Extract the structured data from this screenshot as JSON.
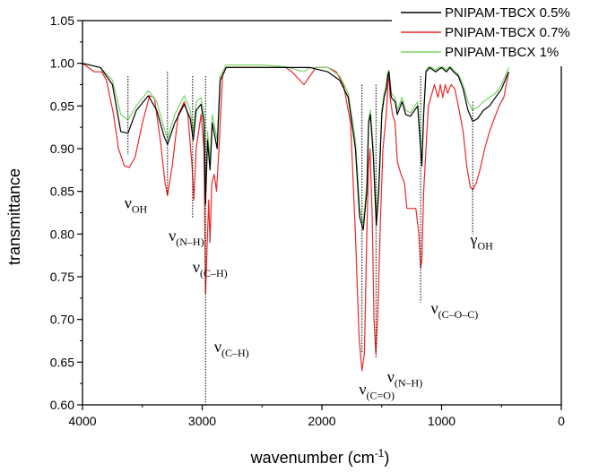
{
  "chart_data": {
    "type": "line",
    "title": "",
    "xlabel": "wavenumber (cm",
    "xlabel_sup": "-1",
    "xlabel_tail": ")",
    "ylabel": "transmittance",
    "xlim": [
      4000,
      0
    ],
    "ylim": [
      0.6,
      1.05
    ],
    "grid": false,
    "legend_position": "top-right",
    "x_ticks": [
      4000,
      3000,
      2000,
      1000,
      0
    ],
    "x_tick_labels": [
      "4000",
      "3000",
      "2000",
      "1000",
      "0"
    ],
    "y_ticks": [
      0.6,
      0.65,
      0.7,
      0.75,
      0.8,
      0.85,
      0.9,
      0.95,
      1.0,
      1.05
    ],
    "y_tick_labels": [
      "0.60",
      "0.65",
      "0.70",
      "0.75",
      "0.80",
      "0.85",
      "0.90",
      "0.95",
      "1.00",
      "1.05"
    ],
    "series": [
      {
        "name": "PNIPAM-TBCX 0.5%",
        "color": "#000000",
        "points": [
          [
            4000,
            1.0
          ],
          [
            3850,
            0.995
          ],
          [
            3750,
            0.975
          ],
          [
            3680,
            0.92
          ],
          [
            3620,
            0.918
          ],
          [
            3550,
            0.945
          ],
          [
            3450,
            0.962
          ],
          [
            3380,
            0.945
          ],
          [
            3320,
            0.915
          ],
          [
            3290,
            0.905
          ],
          [
            3230,
            0.93
          ],
          [
            3150,
            0.952
          ],
          [
            3100,
            0.935
          ],
          [
            3075,
            0.91
          ],
          [
            3050,
            0.945
          ],
          [
            3010,
            0.952
          ],
          [
            2985,
            0.93
          ],
          [
            2972,
            0.835
          ],
          [
            2955,
            0.91
          ],
          [
            2935,
            0.875
          ],
          [
            2915,
            0.93
          ],
          [
            2875,
            0.9
          ],
          [
            2850,
            0.98
          ],
          [
            2800,
            0.995
          ],
          [
            2700,
            0.995
          ],
          [
            2500,
            0.995
          ],
          [
            2300,
            0.995
          ],
          [
            2100,
            0.995
          ],
          [
            1950,
            0.99
          ],
          [
            1850,
            0.98
          ],
          [
            1780,
            0.96
          ],
          [
            1720,
            0.9
          ],
          [
            1685,
            0.82
          ],
          [
            1655,
            0.805
          ],
          [
            1625,
            0.85
          ],
          [
            1610,
            0.93
          ],
          [
            1595,
            0.94
          ],
          [
            1570,
            0.89
          ],
          [
            1545,
            0.81
          ],
          [
            1525,
            0.85
          ],
          [
            1500,
            0.94
          ],
          [
            1480,
            0.96
          ],
          [
            1462,
            0.97
          ],
          [
            1450,
            0.985
          ],
          [
            1440,
            0.99
          ],
          [
            1420,
            0.96
          ],
          [
            1388,
            0.955
          ],
          [
            1370,
            0.94
          ],
          [
            1330,
            0.955
          ],
          [
            1300,
            0.94
          ],
          [
            1260,
            0.938
          ],
          [
            1200,
            0.95
          ],
          [
            1175,
            0.9
          ],
          [
            1165,
            0.88
          ],
          [
            1150,
            0.94
          ],
          [
            1130,
            0.99
          ],
          [
            1100,
            0.995
          ],
          [
            1050,
            0.99
          ],
          [
            1000,
            0.995
          ],
          [
            960,
            0.99
          ],
          [
            930,
            0.995
          ],
          [
            900,
            0.99
          ],
          [
            860,
            0.985
          ],
          [
            820,
            0.97
          ],
          [
            780,
            0.945
          ],
          [
            740,
            0.932
          ],
          [
            700,
            0.935
          ],
          [
            650,
            0.945
          ],
          [
            600,
            0.95
          ],
          [
            550,
            0.96
          ],
          [
            500,
            0.97
          ],
          [
            440,
            0.99
          ]
        ]
      },
      {
        "name": "PNIPAM-TBCX 0.7%",
        "color": "#e8292b",
        "points": [
          [
            4000,
            1.0
          ],
          [
            3900,
            0.99
          ],
          [
            3840,
            0.99
          ],
          [
            3800,
            0.98
          ],
          [
            3740,
            0.94
          ],
          [
            3700,
            0.9
          ],
          [
            3650,
            0.88
          ],
          [
            3610,
            0.878
          ],
          [
            3560,
            0.89
          ],
          [
            3500,
            0.93
          ],
          [
            3440,
            0.962
          ],
          [
            3400,
            0.96
          ],
          [
            3350,
            0.91
          ],
          [
            3310,
            0.86
          ],
          [
            3290,
            0.845
          ],
          [
            3250,
            0.88
          ],
          [
            3200,
            0.94
          ],
          [
            3150,
            0.955
          ],
          [
            3120,
            0.94
          ],
          [
            3085,
            0.88
          ],
          [
            3070,
            0.84
          ],
          [
            3050,
            0.9
          ],
          [
            3010,
            0.94
          ],
          [
            2985,
            0.9
          ],
          [
            2972,
            0.73
          ],
          [
            2960,
            0.78
          ],
          [
            2945,
            0.84
          ],
          [
            2935,
            0.79
          ],
          [
            2920,
            0.86
          ],
          [
            2900,
            0.87
          ],
          [
            2880,
            0.85
          ],
          [
            2860,
            0.9
          ],
          [
            2830,
            0.985
          ],
          [
            2800,
            0.995
          ],
          [
            2500,
            0.995
          ],
          [
            2300,
            0.995
          ],
          [
            2250,
            0.99
          ],
          [
            2150,
            0.975
          ],
          [
            2100,
            0.985
          ],
          [
            2050,
            0.995
          ],
          [
            1950,
            0.995
          ],
          [
            1880,
            0.99
          ],
          [
            1820,
            0.975
          ],
          [
            1760,
            0.93
          ],
          [
            1720,
            0.8
          ],
          [
            1690,
            0.68
          ],
          [
            1665,
            0.64
          ],
          [
            1645,
            0.66
          ],
          [
            1625,
            0.8
          ],
          [
            1610,
            0.88
          ],
          [
            1598,
            0.9
          ],
          [
            1580,
            0.82
          ],
          [
            1565,
            0.7
          ],
          [
            1550,
            0.66
          ],
          [
            1535,
            0.7
          ],
          [
            1510,
            0.82
          ],
          [
            1490,
            0.9
          ],
          [
            1462,
            0.94
          ],
          [
            1450,
            0.97
          ],
          [
            1440,
            0.99
          ],
          [
            1430,
            0.96
          ],
          [
            1410,
            0.94
          ],
          [
            1388,
            0.93
          ],
          [
            1370,
            0.885
          ],
          [
            1340,
            0.87
          ],
          [
            1310,
            0.86
          ],
          [
            1290,
            0.83
          ],
          [
            1270,
            0.83
          ],
          [
            1250,
            0.83
          ],
          [
            1215,
            0.83
          ],
          [
            1190,
            0.8
          ],
          [
            1175,
            0.76
          ],
          [
            1165,
            0.77
          ],
          [
            1150,
            0.85
          ],
          [
            1130,
            0.9
          ],
          [
            1110,
            0.95
          ],
          [
            1090,
            0.96
          ],
          [
            1060,
            0.975
          ],
          [
            1030,
            0.96
          ],
          [
            1010,
            0.975
          ],
          [
            990,
            0.96
          ],
          [
            970,
            0.975
          ],
          [
            950,
            0.965
          ],
          [
            920,
            0.975
          ],
          [
            890,
            0.97
          ],
          [
            860,
            0.95
          ],
          [
            820,
            0.92
          ],
          [
            790,
            0.88
          ],
          [
            760,
            0.855
          ],
          [
            740,
            0.852
          ],
          [
            710,
            0.86
          ],
          [
            680,
            0.875
          ],
          [
            640,
            0.9
          ],
          [
            600,
            0.92
          ],
          [
            560,
            0.935
          ],
          [
            520,
            0.95
          ],
          [
            480,
            0.96
          ],
          [
            440,
            0.99
          ]
        ]
      },
      {
        "name": "PNIPAM-TBCX 1%",
        "color": "#7bd26a",
        "points": [
          [
            4000,
            1.0
          ],
          [
            3850,
            0.995
          ],
          [
            3750,
            0.98
          ],
          [
            3680,
            0.94
          ],
          [
            3620,
            0.934
          ],
          [
            3550,
            0.95
          ],
          [
            3450,
            0.968
          ],
          [
            3380,
            0.955
          ],
          [
            3320,
            0.925
          ],
          [
            3290,
            0.912
          ],
          [
            3230,
            0.94
          ],
          [
            3150,
            0.962
          ],
          [
            3100,
            0.945
          ],
          [
            3075,
            0.92
          ],
          [
            3050,
            0.955
          ],
          [
            3010,
            0.96
          ],
          [
            2985,
            0.94
          ],
          [
            2972,
            0.845
          ],
          [
            2955,
            0.92
          ],
          [
            2935,
            0.885
          ],
          [
            2915,
            0.94
          ],
          [
            2875,
            0.91
          ],
          [
            2850,
            0.985
          ],
          [
            2800,
            0.998
          ],
          [
            2500,
            0.998
          ],
          [
            2300,
            0.996
          ],
          [
            2250,
            0.994
          ],
          [
            2150,
            0.99
          ],
          [
            2100,
            0.995
          ],
          [
            1950,
            0.995
          ],
          [
            1850,
            0.985
          ],
          [
            1780,
            0.965
          ],
          [
            1720,
            0.91
          ],
          [
            1685,
            0.83
          ],
          [
            1655,
            0.812
          ],
          [
            1625,
            0.86
          ],
          [
            1610,
            0.935
          ],
          [
            1595,
            0.945
          ],
          [
            1570,
            0.9
          ],
          [
            1545,
            0.82
          ],
          [
            1525,
            0.86
          ],
          [
            1500,
            0.945
          ],
          [
            1480,
            0.965
          ],
          [
            1462,
            0.975
          ],
          [
            1450,
            0.99
          ],
          [
            1440,
            0.992
          ],
          [
            1420,
            0.965
          ],
          [
            1388,
            0.96
          ],
          [
            1370,
            0.945
          ],
          [
            1330,
            0.96
          ],
          [
            1300,
            0.945
          ],
          [
            1260,
            0.942
          ],
          [
            1200,
            0.955
          ],
          [
            1175,
            0.905
          ],
          [
            1165,
            0.885
          ],
          [
            1150,
            0.945
          ],
          [
            1130,
            0.992
          ],
          [
            1100,
            0.997
          ],
          [
            1050,
            0.992
          ],
          [
            1000,
            0.997
          ],
          [
            960,
            0.992
          ],
          [
            930,
            0.997
          ],
          [
            900,
            0.992
          ],
          [
            860,
            0.987
          ],
          [
            820,
            0.975
          ],
          [
            780,
            0.955
          ],
          [
            740,
            0.945
          ],
          [
            700,
            0.948
          ],
          [
            650,
            0.955
          ],
          [
            600,
            0.96
          ],
          [
            550,
            0.965
          ],
          [
            500,
            0.975
          ],
          [
            440,
            0.995
          ]
        ]
      }
    ],
    "marker_lines": [
      {
        "x": 3620,
        "y_top": 0.985,
        "y_bottom": 0.893
      },
      {
        "x": 3290,
        "y_top": 0.99,
        "y_bottom": 0.845
      },
      {
        "x": 3080,
        "y_top": 0.985,
        "y_bottom": 0.818
      },
      {
        "x": 2972,
        "y_top": 0.985,
        "y_bottom": 0.6
      },
      {
        "x": 1665,
        "y_top": 0.975,
        "y_bottom": 0.66
      },
      {
        "x": 1548,
        "y_top": 0.975,
        "y_bottom": 0.655
      },
      {
        "x": 1175,
        "y_top": 0.985,
        "y_bottom": 0.72
      },
      {
        "x": 740,
        "y_top": 0.955,
        "y_bottom": 0.8
      }
    ],
    "annotations": [
      {
        "id": "nu-oh",
        "symbol": "ν",
        "sub": "OH",
        "x": 3650,
        "y": 0.83
      },
      {
        "id": "nu-nh-1",
        "symbol": "ν",
        "sub": "(N–H)",
        "x": 3280,
        "y": 0.792
      },
      {
        "id": "nu-ch-1",
        "symbol": "ν",
        "sub": "(C–H)",
        "x": 3080,
        "y": 0.755
      },
      {
        "id": "nu-ch-2",
        "symbol": "ν",
        "sub": "(C–H)",
        "x": 2900,
        "y": 0.662
      },
      {
        "id": "nu-co",
        "symbol": "ν",
        "sub": "(C=O)",
        "x": 1690,
        "y": 0.612
      },
      {
        "id": "nu-nh-2",
        "symbol": "ν",
        "sub": "(N–H)",
        "x": 1455,
        "y": 0.627
      },
      {
        "id": "nu-coc",
        "symbol": "ν",
        "sub": "(C–O–C)",
        "x": 1090,
        "y": 0.707
      },
      {
        "id": "gamma-oh",
        "symbol": "γ",
        "sub": "OH",
        "x": 760,
        "y": 0.787
      }
    ]
  }
}
